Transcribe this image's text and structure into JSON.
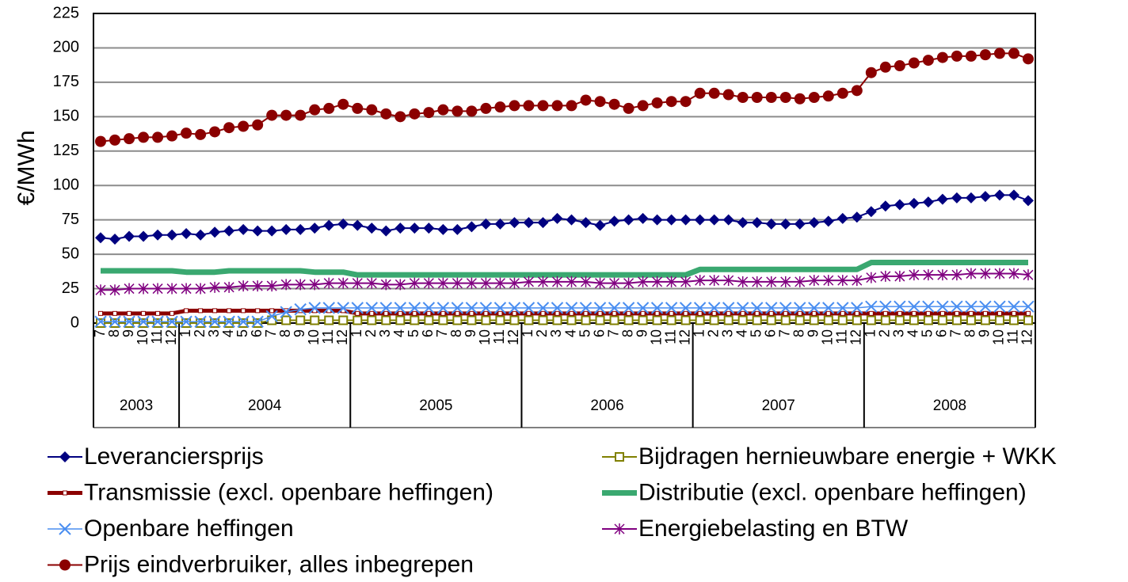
{
  "chart_data": {
    "type": "line",
    "y_label": "€/MWh",
    "categories": [
      "7",
      "8",
      "9",
      "10",
      "11",
      "12",
      "1",
      "2",
      "3",
      "4",
      "5",
      "6",
      "7",
      "8",
      "9",
      "10",
      "11",
      "12",
      "1",
      "2",
      "3",
      "4",
      "5",
      "6",
      "7",
      "8",
      "9",
      "10",
      "11",
      "12",
      "1",
      "2",
      "3",
      "4",
      "5",
      "6",
      "7",
      "8",
      "9",
      "10",
      "11",
      "12",
      "1",
      "2",
      "3",
      "4",
      "5",
      "6",
      "7",
      "8",
      "9",
      "10",
      "11",
      "12",
      "1",
      "2",
      "3",
      "4",
      "5",
      "6",
      "7",
      "8",
      "9",
      "10",
      "11",
      "12"
    ],
    "group_labels": [
      "2003",
      "2004",
      "2005",
      "2006",
      "2007",
      "2008"
    ],
    "ylim": [
      0,
      225
    ],
    "yticks": [
      0,
      25,
      50,
      75,
      100,
      125,
      150,
      175,
      200,
      225
    ],
    "grid": true,
    "series": [
      {
        "name": "Leveranciersprijs",
        "color": "#000080",
        "marker": "diamond",
        "line_width": 2,
        "values": [
          62,
          61,
          63,
          63,
          64,
          64,
          65,
          64,
          66,
          67,
          68,
          67,
          67,
          68,
          68,
          69,
          71,
          72,
          71,
          69,
          67,
          69,
          69,
          69,
          68,
          68,
          70,
          72,
          72,
          73,
          73,
          73,
          76,
          75,
          73,
          71,
          74,
          75,
          76,
          75,
          75,
          75,
          75,
          75,
          75,
          73,
          73,
          72,
          72,
          72,
          73,
          74,
          76,
          77,
          81,
          85,
          86,
          87,
          88,
          90,
          91,
          91,
          92,
          93,
          93,
          89
        ]
      },
      {
        "name": "Bijdragen hernieuwbare energie + WKK",
        "color": "#808000",
        "marker": "square",
        "line_width": 2,
        "values": [
          0,
          0,
          0,
          0,
          0,
          0,
          0,
          0,
          0,
          0,
          0,
          0,
          2,
          2,
          2,
          2,
          2,
          2,
          2,
          2,
          2,
          2,
          2,
          2,
          2,
          2,
          2,
          2,
          2,
          2,
          2,
          2,
          2,
          2,
          2,
          2,
          2,
          2,
          2,
          2,
          2,
          2,
          2,
          2,
          2,
          2,
          2,
          2,
          2,
          2,
          2,
          2,
          2,
          2,
          2,
          2,
          2,
          2,
          2,
          2,
          2,
          2,
          2,
          2,
          2,
          2
        ]
      },
      {
        "name": "Transmissie (excl. openbare heffingen)",
        "color": "#8b0000",
        "marker": "small-square",
        "line_width": 5,
        "values": [
          7,
          7,
          7,
          7,
          7,
          7,
          9,
          9,
          9,
          9,
          9,
          9,
          9,
          9,
          9,
          9,
          9,
          9,
          7,
          7,
          7,
          7,
          7,
          7,
          7,
          7,
          7,
          7,
          7,
          7,
          7,
          7,
          7,
          7,
          7,
          7,
          7,
          7,
          7,
          7,
          7,
          7,
          7,
          7,
          7,
          7,
          7,
          7,
          7,
          7,
          7,
          7,
          7,
          7,
          7,
          7,
          7,
          7,
          7,
          7,
          7,
          7,
          7,
          7,
          7,
          7
        ]
      },
      {
        "name": "Distributie (excl. openbare heffingen)",
        "color": "#3aa870",
        "marker": "none",
        "line_width": 7,
        "values": [
          38,
          38,
          38,
          38,
          38,
          38,
          37,
          37,
          37,
          38,
          38,
          38,
          38,
          38,
          38,
          37,
          37,
          37,
          35,
          35,
          35,
          35,
          35,
          35,
          35,
          35,
          35,
          35,
          35,
          35,
          35,
          35,
          35,
          35,
          35,
          35,
          35,
          35,
          35,
          35,
          35,
          35,
          39,
          39,
          39,
          39,
          39,
          39,
          39,
          39,
          39,
          39,
          39,
          39,
          44,
          44,
          44,
          44,
          44,
          44,
          44,
          44,
          44,
          44,
          44,
          44
        ]
      },
      {
        "name": "Openbare heffingen",
        "color": "#4a8ef0",
        "marker": "x",
        "line_width": 1.5,
        "values": [
          1,
          1,
          1,
          1,
          1,
          1,
          1,
          1,
          1,
          1,
          1,
          1,
          5,
          8,
          10,
          11,
          11,
          11,
          11,
          11,
          11,
          11,
          11,
          11,
          11,
          11,
          11,
          11,
          11,
          11,
          11,
          11,
          11,
          11,
          11,
          11,
          11,
          11,
          11,
          11,
          11,
          11,
          11,
          11,
          11,
          11,
          11,
          11,
          11,
          11,
          11,
          11,
          11,
          11,
          12,
          12,
          12,
          12,
          12,
          12,
          12,
          12,
          12,
          12,
          12,
          12
        ]
      },
      {
        "name": "Energiebelasting en BTW",
        "color": "#800080",
        "marker": "star",
        "line_width": 2,
        "values": [
          24,
          24,
          25,
          25,
          25,
          25,
          25,
          25,
          26,
          26,
          27,
          27,
          27,
          28,
          28,
          28,
          29,
          29,
          29,
          29,
          28,
          28,
          29,
          29,
          29,
          29,
          29,
          29,
          29,
          29,
          30,
          30,
          30,
          30,
          30,
          29,
          29,
          29,
          30,
          30,
          30,
          30,
          31,
          31,
          31,
          30,
          30,
          30,
          30,
          30,
          31,
          31,
          31,
          31,
          33,
          34,
          34,
          35,
          35,
          35,
          35,
          36,
          36,
          36,
          36,
          35
        ]
      },
      {
        "name": "Prijs eindverbruiker, alles inbegrepen",
        "color": "#8b0000",
        "marker": "circle",
        "line_width": 2,
        "values": [
          132,
          133,
          134,
          135,
          135,
          136,
          138,
          137,
          139,
          142,
          143,
          144,
          151,
          151,
          151,
          155,
          156,
          159,
          156,
          155,
          152,
          150,
          152,
          153,
          155,
          154,
          154,
          156,
          157,
          158,
          158,
          158,
          158,
          158,
          162,
          161,
          159,
          156,
          158,
          160,
          161,
          161,
          167,
          167,
          166,
          164,
          164,
          164,
          164,
          163,
          164,
          165,
          167,
          169,
          182,
          186,
          187,
          189,
          191,
          193,
          194,
          194,
          195,
          196,
          196,
          192
        ]
      }
    ]
  }
}
